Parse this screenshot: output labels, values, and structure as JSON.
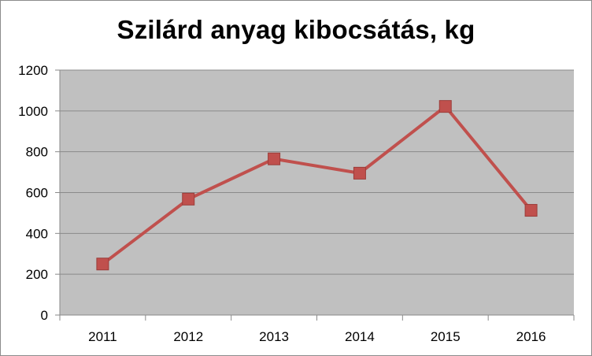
{
  "chart_data": {
    "type": "line",
    "title": "Szilárd anyag kibocsátás, kg",
    "xlabel": "",
    "ylabel": "",
    "categories": [
      "2011",
      "2012",
      "2013",
      "2014",
      "2015",
      "2016"
    ],
    "series": [
      {
        "values": [
          250,
          568,
          765,
          695,
          1022,
          513
        ],
        "color": "#c0504d",
        "marker": "square"
      }
    ],
    "ylim": [
      0,
      1200
    ],
    "yticks": [
      0,
      200,
      400,
      600,
      800,
      1000,
      1200
    ],
    "grid": true,
    "legend": "none",
    "plot_background": "#c0c0c0"
  }
}
